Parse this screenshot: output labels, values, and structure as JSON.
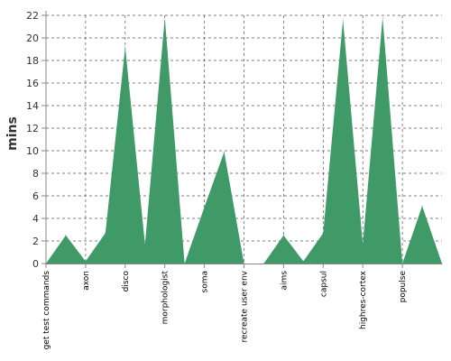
{
  "chart_data": {
    "type": "area",
    "title": "",
    "xlabel": "",
    "ylabel": "mins",
    "ylim": [
      0,
      22
    ],
    "yticks": [
      0,
      2,
      4,
      6,
      8,
      10,
      12,
      14,
      16,
      18,
      20,
      22
    ],
    "grid": true,
    "legend": "none",
    "color": "#3f9a67",
    "x": [
      0,
      1,
      2,
      3,
      4,
      5,
      6,
      7,
      8,
      9,
      10,
      11,
      12,
      13,
      14,
      15,
      16,
      17,
      18,
      19,
      20
    ],
    "values": [
      0,
      2.5,
      0.2,
      2.7,
      19.2,
      1.7,
      21.8,
      0,
      5,
      9.9,
      0,
      0,
      2.5,
      0.2,
      2.7,
      21.6,
      1.7,
      21.8,
      0,
      5.1,
      0
    ],
    "x_tick_positions": [
      0,
      2,
      4,
      6,
      8,
      10,
      12,
      14,
      16,
      18
    ],
    "categories": [
      "get test commands",
      "axon",
      "disco",
      "morphologist",
      "soma",
      "recreate user env",
      "aims",
      "capsul",
      "highres-cortex",
      "populse"
    ]
  }
}
